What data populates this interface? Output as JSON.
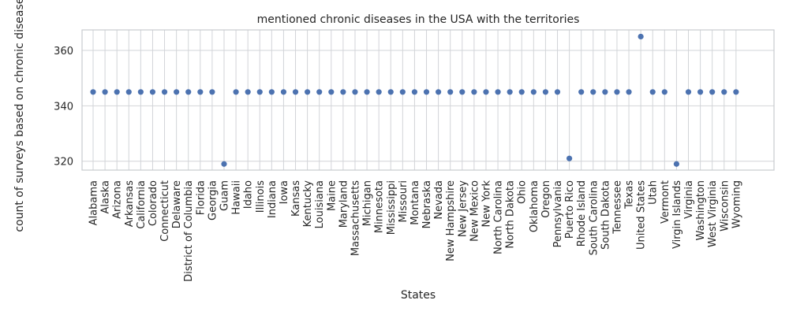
{
  "chart_data": {
    "type": "scatter",
    "title": "mentioned chronic diseases in the USA with the territories",
    "xlabel": "States",
    "ylabel": "count of surveys based on chronic diseases",
    "ylim": [
      316.8,
      367.4
    ],
    "yticks": [
      320,
      340,
      360
    ],
    "grid": true,
    "point_color": "#4c72b0",
    "categories": [
      "Alabama",
      "Alaska",
      "Arizona",
      "Arkansas",
      "California",
      "Colorado",
      "Connecticut",
      "Delaware",
      "District of Columbia",
      "Florida",
      "Georgia",
      "Guam",
      "Hawaii",
      "Idaho",
      "Illinois",
      "Indiana",
      "Iowa",
      "Kansas",
      "Kentucky",
      "Louisiana",
      "Maine",
      "Maryland",
      "Massachusetts",
      "Michigan",
      "Minnesota",
      "Mississippi",
      "Missouri",
      "Montana",
      "Nebraska",
      "Nevada",
      "New Hampshire",
      "New Jersey",
      "New Mexico",
      "New York",
      "North Carolina",
      "North Dakota",
      "Ohio",
      "Oklahoma",
      "Oregon",
      "Pennsylvania",
      "Puerto Rico",
      "Rhode Island",
      "South Carolina",
      "South Dakota",
      "Tennessee",
      "Texas",
      "United States",
      "Utah",
      "Vermont",
      "Virgin Islands",
      "Virginia",
      "Washington",
      "West Virginia",
      "Wisconsin",
      "Wyoming"
    ],
    "values": [
      345,
      345,
      345,
      345,
      345,
      345,
      345,
      345,
      345,
      345,
      345,
      319,
      345,
      345,
      345,
      345,
      345,
      345,
      345,
      345,
      345,
      345,
      345,
      345,
      345,
      345,
      345,
      345,
      345,
      345,
      345,
      345,
      345,
      345,
      345,
      345,
      345,
      345,
      345,
      345,
      321,
      345,
      345,
      345,
      345,
      345,
      365,
      345,
      345,
      319,
      345,
      345,
      345,
      345,
      345
    ]
  }
}
